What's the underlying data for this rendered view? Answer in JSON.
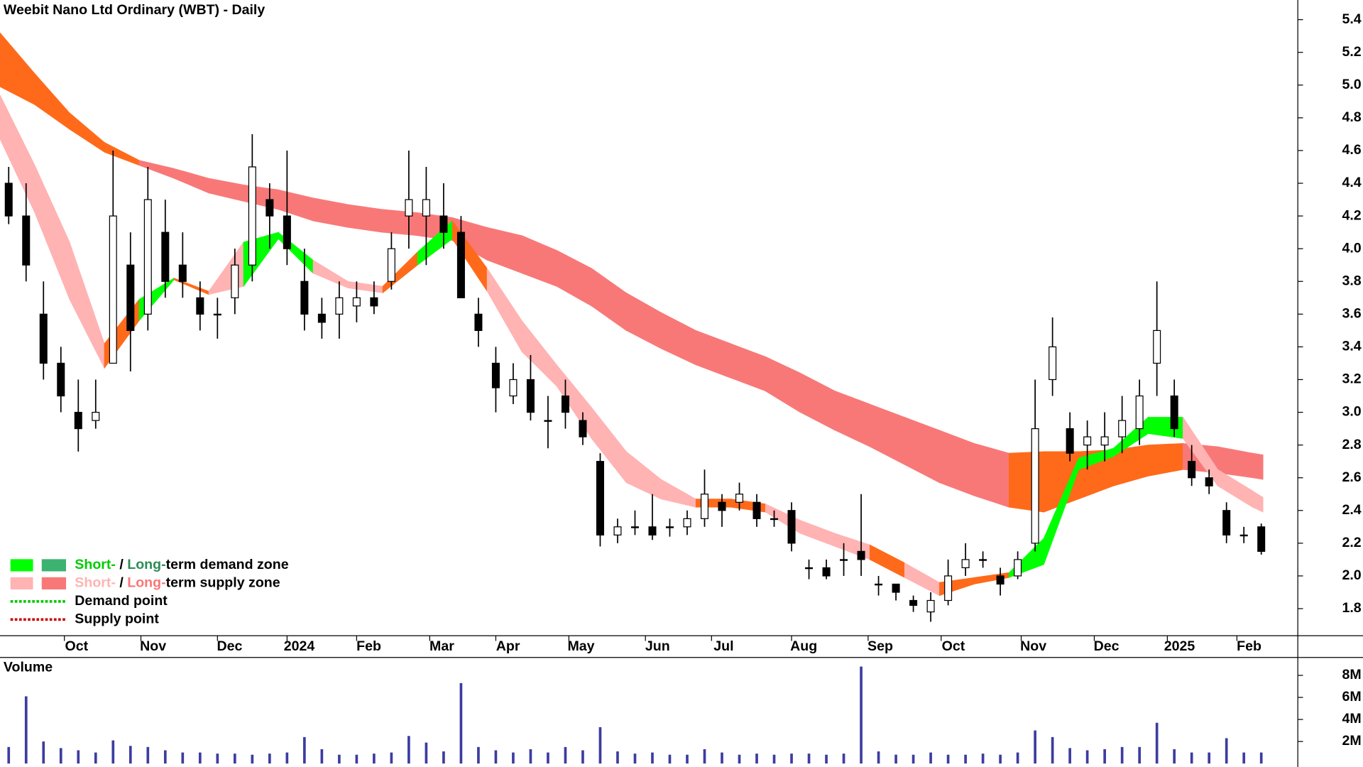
{
  "chart_data": [
    {
      "type": "candlestick",
      "title": "Weebit Nano Ltd Ordinary (WBT) - Daily",
      "x": [
        2.5,
        7.5,
        12.5,
        17.5,
        22.5,
        27.5,
        32.5,
        37.5,
        42.5,
        47.5,
        52.5,
        57.5,
        62.5,
        67.5,
        72.5,
        77.5,
        82.5,
        87.5,
        92.5,
        97.5,
        102.5,
        107.5,
        112.5,
        117.5,
        122.5,
        127.5,
        132.5,
        137.5,
        142.5,
        147.5,
        152.5,
        157.5,
        162.5,
        167.5,
        172.5,
        177.5,
        182.5,
        187.5,
        192.5,
        197.5,
        202.5,
        207.5,
        212.5,
        217.5,
        222.5,
        227.5,
        232.5,
        237.5,
        242.5,
        247.5,
        252.5,
        257.5,
        262.5,
        267.5,
        272.5,
        277.5,
        282.5,
        287.5,
        292.5,
        297.5,
        302.5,
        307.5,
        312.5,
        317.5,
        322.5,
        327.5,
        332.5,
        337.5,
        342.5,
        347.5,
        352.5,
        357.5,
        362.5
      ],
      "open": [
        4.4,
        4.2,
        3.6,
        3.3,
        3.0,
        2.95,
        3.3,
        3.9,
        3.6,
        4.1,
        3.9,
        3.7,
        3.6,
        3.7,
        3.9,
        4.3,
        4.2,
        3.8,
        3.6,
        3.6,
        3.65,
        3.7,
        3.8,
        4.2,
        4.2,
        4.2,
        4.1,
        3.6,
        3.3,
        3.1,
        3.2,
        2.95,
        3.1,
        2.95,
        2.7,
        2.25,
        2.3,
        2.3,
        2.3,
        2.3,
        2.35,
        2.45,
        2.45,
        2.45,
        2.35,
        2.4,
        2.05,
        2.05,
        2.1,
        2.15,
        1.95,
        1.95,
        1.85,
        1.78,
        1.85,
        2.05,
        2.1,
        2.0,
        2.0,
        2.2,
        3.2,
        2.9,
        2.8,
        2.8,
        2.85,
        2.9,
        3.3,
        3.1,
        2.7,
        2.6,
        2.4,
        2.25,
        2.3
      ],
      "high": [
        4.5,
        4.4,
        3.8,
        3.4,
        3.2,
        3.2,
        4.6,
        4.1,
        4.5,
        4.3,
        4.1,
        3.8,
        3.7,
        4.0,
        4.7,
        4.4,
        4.6,
        4.0,
        3.7,
        3.8,
        3.8,
        3.8,
        4.1,
        4.6,
        4.5,
        4.4,
        4.2,
        3.7,
        3.4,
        3.3,
        3.35,
        3.1,
        3.2,
        3.0,
        2.75,
        2.35,
        2.4,
        2.5,
        2.35,
        2.4,
        2.65,
        2.5,
        2.57,
        2.5,
        2.4,
        2.45,
        2.1,
        2.1,
        2.2,
        2.5,
        2.0,
        1.95,
        1.88,
        1.9,
        2.1,
        2.2,
        2.15,
        2.05,
        2.15,
        3.2,
        3.58,
        3.0,
        2.95,
        3.0,
        3.1,
        3.2,
        3.8,
        3.2,
        2.8,
        2.65,
        2.45,
        2.3,
        2.32
      ],
      "low": [
        4.15,
        3.8,
        3.2,
        3.0,
        2.76,
        2.9,
        3.3,
        3.25,
        3.5,
        3.7,
        3.7,
        3.5,
        3.45,
        3.6,
        3.8,
        4.0,
        3.9,
        3.5,
        3.45,
        3.45,
        3.55,
        3.6,
        3.75,
        4.0,
        3.9,
        4.0,
        3.7,
        3.4,
        3.0,
        3.05,
        2.95,
        2.78,
        2.9,
        2.8,
        2.18,
        2.2,
        2.25,
        2.22,
        2.24,
        2.25,
        2.3,
        2.3,
        2.4,
        2.3,
        2.3,
        2.15,
        1.98,
        1.98,
        2.0,
        2.0,
        1.88,
        1.85,
        1.78,
        1.72,
        1.82,
        2.0,
        2.05,
        1.88,
        1.98,
        2.15,
        3.1,
        2.7,
        2.65,
        2.7,
        2.75,
        2.8,
        3.1,
        2.85,
        2.55,
        2.5,
        2.2,
        2.2,
        2.13
      ],
      "close": [
        4.2,
        3.9,
        3.3,
        3.1,
        2.9,
        3.0,
        4.2,
        3.5,
        4.3,
        3.8,
        3.8,
        3.6,
        3.6,
        3.9,
        4.5,
        4.2,
        4.0,
        3.6,
        3.55,
        3.7,
        3.7,
        3.65,
        4.0,
        4.3,
        4.3,
        4.1,
        3.7,
        3.5,
        3.15,
        3.2,
        3.0,
        2.95,
        3.0,
        2.85,
        2.25,
        2.3,
        2.3,
        2.25,
        2.3,
        2.35,
        2.5,
        2.4,
        2.5,
        2.35,
        2.35,
        2.2,
        2.05,
        2.0,
        2.1,
        2.1,
        1.95,
        1.9,
        1.82,
        1.85,
        2.0,
        2.1,
        2.1,
        1.95,
        2.1,
        2.9,
        3.4,
        2.75,
        2.85,
        2.85,
        2.95,
        3.1,
        3.5,
        2.9,
        2.6,
        2.55,
        2.25,
        2.25,
        2.15
      ],
      "up_color": "#ffffff",
      "down_color": "#000000",
      "zone_x": [
        0,
        10,
        20,
        30,
        40,
        50,
        60,
        70,
        80,
        90,
        100,
        110,
        120,
        130,
        140,
        150,
        160,
        170,
        180,
        190,
        200,
        210,
        220,
        230,
        240,
        250,
        260,
        270,
        280,
        290,
        300,
        310,
        320,
        330,
        340,
        350,
        360,
        363
      ],
      "long_term_zone": {
        "upper": [
          5.32,
          5.07,
          4.83,
          4.65,
          4.54,
          4.49,
          4.43,
          4.39,
          4.36,
          4.31,
          4.27,
          4.24,
          4.22,
          4.19,
          4.13,
          4.08,
          3.99,
          3.88,
          3.73,
          3.61,
          3.5,
          3.42,
          3.34,
          3.24,
          3.13,
          3.05,
          2.97,
          2.89,
          2.81,
          2.75,
          2.76,
          2.76,
          2.77,
          2.8,
          2.81,
          2.79,
          2.75,
          2.74
        ],
        "lower": [
          4.99,
          4.88,
          4.73,
          4.59,
          4.51,
          4.43,
          4.34,
          4.29,
          4.24,
          4.17,
          4.13,
          4.1,
          4.08,
          4.05,
          3.93,
          3.85,
          3.77,
          3.65,
          3.5,
          3.39,
          3.29,
          3.21,
          3.13,
          3.0,
          2.89,
          2.79,
          2.68,
          2.57,
          2.49,
          2.42,
          2.39,
          2.47,
          2.55,
          2.61,
          2.65,
          2.63,
          2.6,
          2.59
        ],
        "colors": [
          "#ff6a1a",
          "#ff6a1a",
          "#ff6a1a",
          "#ff6a1a",
          "#f87878",
          "#f87878",
          "#f87878",
          "#f87878",
          "#f87878",
          "#f87878",
          "#f87878",
          "#f87878",
          "#f87878",
          "#f87878",
          "#f87878",
          "#f87878",
          "#f87878",
          "#f87878",
          "#f87878",
          "#f87878",
          "#f87878",
          "#f87878",
          "#f87878",
          "#f87878",
          "#f87878",
          "#f87878",
          "#f87878",
          "#f87878",
          "#f87878",
          "#ff6a1a",
          "#ff6a1a",
          "#ff6a1a",
          "#ff6a1a",
          "#ff6a1a",
          "#f87878",
          "#f87878",
          "#f87878",
          "#f87878"
        ]
      },
      "short_term_zone": {
        "upper": [
          4.94,
          4.51,
          4.04,
          3.42,
          3.69,
          3.82,
          3.74,
          4.04,
          4.1,
          3.93,
          3.8,
          3.77,
          3.98,
          4.17,
          3.88,
          3.56,
          3.29,
          3.03,
          2.76,
          2.59,
          2.47,
          2.47,
          2.44,
          2.34,
          2.26,
          2.19,
          2.08,
          1.96,
          1.99,
          2.02,
          2.23,
          2.72,
          2.78,
          2.97,
          2.97,
          2.65,
          2.52,
          2.48
        ],
        "lower": [
          4.67,
          4.22,
          3.69,
          3.27,
          3.56,
          3.81,
          3.72,
          3.77,
          4.06,
          3.85,
          3.76,
          3.73,
          3.9,
          4.06,
          3.74,
          3.37,
          3.16,
          2.84,
          2.57,
          2.47,
          2.42,
          2.42,
          2.39,
          2.26,
          2.18,
          2.1,
          1.99,
          1.88,
          1.95,
          1.99,
          2.07,
          2.65,
          2.73,
          2.87,
          2.84,
          2.55,
          2.42,
          2.39
        ],
        "colors": [
          "#ffb3b3",
          "#ffb3b3",
          "#ffb3b3",
          "#ff6a1a",
          "#00ff00",
          "#ff6a1a",
          "#ffb3b3",
          "#00ff00",
          "#00ff00",
          "#ffb3b3",
          "#ffb3b3",
          "#ff6a1a",
          "#00ff00",
          "#ff6a1a",
          "#ffb3b3",
          "#ffb3b3",
          "#ffb3b3",
          "#ffb3b3",
          "#ffb3b3",
          "#ffb3b3",
          "#ff6a1a",
          "#ff6a1a",
          "#ffb3b3",
          "#ffb3b3",
          "#ffb3b3",
          "#ff6a1a",
          "#ffb3b3",
          "#ff6a1a",
          "#ff6a1a",
          "#00ff00",
          "#00ff00",
          "#00ff00",
          "#00ff00",
          "#00ff00",
          "#ffb3b3",
          "#ffb3b3",
          "#ffb3b3",
          "#ffb3b3"
        ]
      },
      "xlim": [
        0,
        373
      ],
      "xticks": [
        {
          "value": 22,
          "label": "Oct"
        },
        {
          "value": 44,
          "label": "Nov"
        },
        {
          "value": 66,
          "label": "Dec"
        },
        {
          "value": 86,
          "label": "2024"
        },
        {
          "value": 106,
          "label": "Feb"
        },
        {
          "value": 127,
          "label": "Mar"
        },
        {
          "value": 146,
          "label": "Apr"
        },
        {
          "value": 167,
          "label": "May"
        },
        {
          "value": 189,
          "label": "Jun"
        },
        {
          "value": 208,
          "label": "Jul"
        },
        {
          "value": 231,
          "label": "Aug"
        },
        {
          "value": 253,
          "label": "Sep"
        },
        {
          "value": 274,
          "label": "Oct"
        },
        {
          "value": 297,
          "label": "Nov"
        },
        {
          "value": 318,
          "label": "Dec"
        },
        {
          "value": 339,
          "label": "2025"
        },
        {
          "value": 359,
          "label": "Feb"
        }
      ],
      "ylim": [
        1.64,
        5.52
      ],
      "yticks": [
        1.8,
        {
          "value": 2,
          "label": "2.0"
        },
        2.2,
        2.4,
        2.6,
        2.8,
        {
          "value": 3,
          "label": "3.0"
        },
        3.2,
        3.4,
        3.6,
        3.8,
        {
          "value": 4,
          "label": "4.0"
        },
        4.2,
        4.4,
        4.6,
        4.8,
        {
          "value": 5,
          "label": "5.0"
        },
        5.2,
        5.4
      ],
      "legend_position": "lower left",
      "legend": [
        {
          "parts": [
            "Short-",
            " / ",
            "Long-",
            "term demand zone"
          ],
          "part_colors": [
            "#00cc00",
            "#000000",
            "#2e8b57",
            "#000000"
          ],
          "swatches": [
            "#00ff00",
            "#3cb371"
          ]
        },
        {
          "parts": [
            "Short-",
            " / ",
            "Long-",
            "term supply zone"
          ],
          "part_colors": [
            "#ffb3b3",
            "#000000",
            "#f87878",
            "#000000"
          ],
          "swatches": [
            "#ffb3b3",
            "#f87878"
          ]
        },
        {
          "text": "Demand point",
          "line_color": "#00cc00"
        },
        {
          "text": "Supply point",
          "line_color": "#cc0000"
        }
      ]
    },
    {
      "type": "bar",
      "title": "Volume",
      "title_color": "#3a2a8a",
      "color": "#3c3ca0",
      "x": [
        2.5,
        7.5,
        12.5,
        17.5,
        22.5,
        27.5,
        32.5,
        37.5,
        42.5,
        47.5,
        52.5,
        57.5,
        62.5,
        67.5,
        72.5,
        77.5,
        82.5,
        87.5,
        92.5,
        97.5,
        102.5,
        107.5,
        112.5,
        117.5,
        122.5,
        127.5,
        132.5,
        137.5,
        142.5,
        147.5,
        152.5,
        157.5,
        162.5,
        167.5,
        172.5,
        177.5,
        182.5,
        187.5,
        192.5,
        197.5,
        202.5,
        207.5,
        212.5,
        217.5,
        222.5,
        227.5,
        232.5,
        237.5,
        242.5,
        247.5,
        252.5,
        257.5,
        262.5,
        267.5,
        272.5,
        277.5,
        282.5,
        287.5,
        292.5,
        297.5,
        302.5,
        307.5,
        312.5,
        317.5,
        322.5,
        327.5,
        332.5,
        337.5,
        342.5,
        347.5,
        352.5,
        357.5,
        362.5
      ],
      "values": [
        1500000,
        6100000,
        2000000,
        1400000,
        1200000,
        1000000,
        2100000,
        1600000,
        1500000,
        1200000,
        1000000,
        1000000,
        900000,
        900000,
        800000,
        900000,
        1000000,
        2400000,
        1300000,
        800000,
        800000,
        900000,
        1000000,
        2500000,
        1900000,
        1100000,
        7300000,
        1500000,
        1200000,
        1000000,
        1300000,
        1000000,
        1500000,
        1200000,
        3300000,
        1100000,
        900000,
        1000000,
        800000,
        800000,
        1300000,
        1000000,
        800000,
        900000,
        800000,
        900000,
        900000,
        800000,
        900000,
        8800000,
        1100000,
        800000,
        800000,
        1000000,
        800000,
        800000,
        900000,
        800000,
        1000000,
        3000000,
        2400000,
        1400000,
        1200000,
        1300000,
        1500000,
        1500000,
        3700000,
        1300000,
        1000000,
        1000000,
        2300000,
        1000000,
        1000000
      ],
      "xlim": [
        0,
        373
      ],
      "ylim": [
        0,
        9550000
      ],
      "yticks": [
        {
          "value": 2000000,
          "label": "2M"
        },
        {
          "value": 4000000,
          "label": "4M"
        },
        {
          "value": 6000000,
          "label": "6M"
        },
        {
          "value": 8000000,
          "label": "8M"
        }
      ]
    }
  ]
}
